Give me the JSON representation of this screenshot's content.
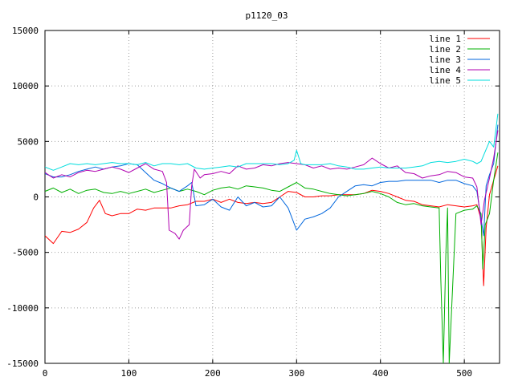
{
  "chart_data": {
    "type": "line",
    "title": "p1120_03",
    "xlabel": "",
    "ylabel": "",
    "xlim": [
      0,
      542
    ],
    "ylim": [
      -15000,
      15000
    ],
    "xticks": [
      0,
      100,
      200,
      300,
      400,
      500
    ],
    "yticks": [
      -15000,
      -10000,
      -5000,
      0,
      5000,
      10000,
      15000
    ],
    "grid": true,
    "legend_position": "top-right",
    "series": [
      {
        "name": "line 1",
        "color": "#ff0000",
        "x": [
          0,
          10,
          20,
          30,
          40,
          50,
          58,
          65,
          72,
          80,
          90,
          100,
          110,
          120,
          130,
          140,
          150,
          160,
          170,
          180,
          190,
          200,
          210,
          220,
          230,
          240,
          250,
          260,
          270,
          280,
          290,
          300,
          310,
          320,
          330,
          340,
          350,
          360,
          370,
          380,
          390,
          400,
          410,
          420,
          430,
          440,
          450,
          460,
          470,
          480,
          490,
          500,
          510,
          515,
          520,
          523,
          526,
          530,
          535,
          540
        ],
        "y": [
          -3500,
          -4200,
          -3100,
          -3200,
          -2900,
          -2300,
          -1000,
          -300,
          -1500,
          -1700,
          -1500,
          -1500,
          -1100,
          -1200,
          -1000,
          -1000,
          -1000,
          -800,
          -700,
          -400,
          -400,
          -200,
          -500,
          -200,
          -500,
          -600,
          -500,
          -600,
          -500,
          0,
          500,
          400,
          0,
          0,
          100,
          100,
          200,
          200,
          200,
          300,
          600,
          500,
          300,
          0,
          -300,
          -400,
          -700,
          -800,
          -900,
          -700,
          -800,
          -900,
          -800,
          -700,
          -2000,
          -8000,
          -2800,
          200,
          1500,
          2800
        ]
      },
      {
        "name": "line 2",
        "color": "#00b000",
        "x": [
          0,
          10,
          20,
          30,
          40,
          50,
          60,
          70,
          80,
          90,
          100,
          110,
          120,
          130,
          140,
          150,
          160,
          170,
          180,
          190,
          200,
          210,
          220,
          230,
          240,
          250,
          260,
          270,
          280,
          290,
          300,
          310,
          320,
          330,
          340,
          350,
          360,
          370,
          380,
          390,
          400,
          410,
          420,
          430,
          440,
          450,
          460,
          470,
          472,
          475,
          478,
          480,
          482,
          490,
          500,
          510,
          515,
          520,
          522,
          525,
          530,
          535,
          540
        ],
        "y": [
          500,
          800,
          400,
          700,
          300,
          600,
          700,
          400,
          300,
          500,
          300,
          500,
          700,
          400,
          600,
          800,
          500,
          700,
          500,
          200,
          600,
          800,
          900,
          700,
          1000,
          900,
          800,
          600,
          500,
          900,
          1300,
          800,
          700,
          500,
          300,
          200,
          100,
          200,
          300,
          500,
          300,
          0,
          -500,
          -700,
          -600,
          -800,
          -900,
          -1000,
          -7500,
          -15000,
          -5000,
          -1000,
          -15000,
          -1500,
          -1200,
          -1100,
          -800,
          -1500,
          -6500,
          -2500,
          -1500,
          1500,
          4000
        ]
      },
      {
        "name": "line 3",
        "color": "#0066dd",
        "x": [
          0,
          10,
          20,
          30,
          40,
          50,
          60,
          70,
          80,
          90,
          100,
          110,
          120,
          130,
          140,
          150,
          160,
          170,
          175,
          180,
          190,
          200,
          210,
          220,
          230,
          240,
          250,
          260,
          270,
          280,
          290,
          295,
          300,
          310,
          320,
          330,
          340,
          350,
          360,
          370,
          380,
          390,
          400,
          410,
          420,
          430,
          440,
          450,
          460,
          470,
          480,
          490,
          500,
          510,
          515,
          520,
          523,
          526,
          530,
          535,
          540
        ],
        "y": [
          2100,
          1800,
          1800,
          2000,
          2300,
          2500,
          2700,
          2500,
          2700,
          2800,
          3000,
          2900,
          2200,
          1500,
          1200,
          800,
          500,
          1000,
          1300,
          -800,
          -700,
          -200,
          -900,
          -1200,
          0,
          -800,
          -500,
          -900,
          -800,
          0,
          -1000,
          -2000,
          -3000,
          -2000,
          -1800,
          -1500,
          -1000,
          0,
          500,
          1000,
          1100,
          1000,
          1300,
          1400,
          1400,
          1500,
          1500,
          1500,
          1500,
          1300,
          1500,
          1500,
          1200,
          1000,
          500,
          -2000,
          -3500,
          1000,
          2000,
          3000,
          6500
        ]
      },
      {
        "name": "line 4",
        "color": "#b000b0",
        "x": [
          0,
          10,
          20,
          30,
          40,
          50,
          60,
          70,
          80,
          90,
          100,
          110,
          120,
          130,
          140,
          145,
          148,
          155,
          160,
          165,
          172,
          175,
          178,
          185,
          190,
          200,
          210,
          220,
          230,
          240,
          250,
          260,
          270,
          280,
          290,
          300,
          310,
          320,
          330,
          340,
          350,
          360,
          370,
          380,
          390,
          400,
          410,
          420,
          430,
          440,
          450,
          460,
          470,
          480,
          490,
          500,
          510,
          515,
          520,
          524,
          530,
          535,
          540
        ],
        "y": [
          2200,
          1700,
          2000,
          1800,
          2200,
          2400,
          2300,
          2500,
          2700,
          2500,
          2200,
          2600,
          3000,
          2500,
          2300,
          1300,
          -3000,
          -3300,
          -3800,
          -3000,
          -2500,
          1000,
          2500,
          1700,
          2000,
          2100,
          2300,
          2100,
          2800,
          2500,
          2600,
          2900,
          2800,
          3000,
          3100,
          3000,
          2900,
          2600,
          2800,
          2500,
          2600,
          2500,
          2700,
          2900,
          3500,
          3000,
          2600,
          2800,
          2200,
          2100,
          1700,
          1900,
          2000,
          2300,
          2200,
          1800,
          1700,
          900,
          -2500,
          -300,
          1700,
          3500,
          6000
        ]
      },
      {
        "name": "line 5",
        "color": "#00dddd",
        "x": [
          0,
          10,
          20,
          30,
          40,
          50,
          60,
          70,
          80,
          90,
          100,
          110,
          120,
          130,
          140,
          150,
          160,
          170,
          180,
          190,
          200,
          210,
          220,
          230,
          240,
          250,
          260,
          270,
          280,
          290,
          297,
          300,
          305,
          310,
          320,
          330,
          340,
          350,
          360,
          370,
          380,
          390,
          400,
          410,
          420,
          430,
          440,
          450,
          460,
          470,
          480,
          490,
          500,
          510,
          515,
          520,
          525,
          530,
          535,
          540
        ],
        "y": [
          2700,
          2400,
          2700,
          3000,
          2900,
          3000,
          2900,
          3000,
          3100,
          3000,
          3000,
          2900,
          3100,
          2800,
          3000,
          3000,
          2900,
          3000,
          2600,
          2500,
          2600,
          2700,
          2800,
          2700,
          3000,
          3000,
          3000,
          3000,
          2900,
          3000,
          3300,
          4200,
          3000,
          2900,
          2900,
          2900,
          3000,
          2800,
          2700,
          2500,
          2500,
          2600,
          2700,
          2600,
          2600,
          2600,
          2700,
          2800,
          3100,
          3200,
          3100,
          3200,
          3400,
          3200,
          3000,
          3200,
          4100,
          5000,
          4500,
          7500
        ]
      }
    ]
  }
}
